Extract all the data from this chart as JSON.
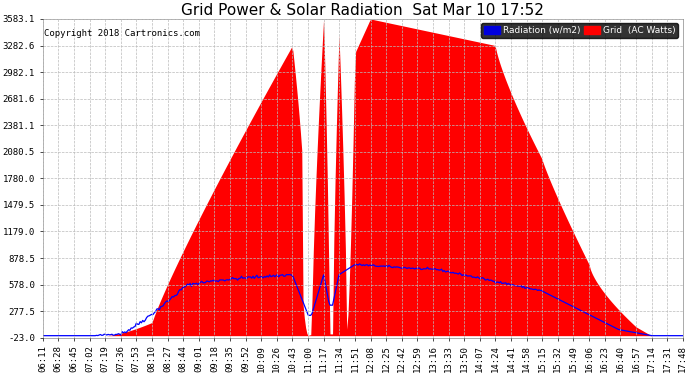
{
  "title": "Grid Power & Solar Radiation  Sat Mar 10 17:52",
  "copyright": "Copyright 2018 Cartronics.com",
  "legend_radiation": "Radiation (w/m2)",
  "legend_grid": "Grid  (AC Watts)",
  "yticks": [
    -23.0,
    277.5,
    578.0,
    878.5,
    1179.0,
    1479.5,
    1780.0,
    2080.5,
    2381.1,
    2681.6,
    2982.1,
    3282.6,
    3583.1
  ],
  "ymin": -23.0,
  "ymax": 3583.1,
  "background_color": "#ffffff",
  "plot_bg_color": "#ffffff",
  "grid_color": "#bbbbbb",
  "red_fill_color": "#ff0000",
  "blue_line_color": "#0000ff",
  "title_fontsize": 11,
  "tick_fontsize": 6.5,
  "xtick_labels": [
    "06:11",
    "06:28",
    "06:45",
    "07:02",
    "07:19",
    "07:36",
    "07:53",
    "08:10",
    "08:27",
    "08:44",
    "09:01",
    "09:18",
    "09:35",
    "09:52",
    "10:09",
    "10:26",
    "10:43",
    "11:00",
    "11:17",
    "11:34",
    "11:51",
    "12:08",
    "12:25",
    "12:42",
    "12:59",
    "13:16",
    "13:33",
    "13:50",
    "14:07",
    "14:24",
    "14:41",
    "14:58",
    "15:15",
    "15:32",
    "15:49",
    "16:06",
    "16:23",
    "16:40",
    "16:57",
    "17:14",
    "17:31",
    "17:48"
  ],
  "num_points": 500
}
